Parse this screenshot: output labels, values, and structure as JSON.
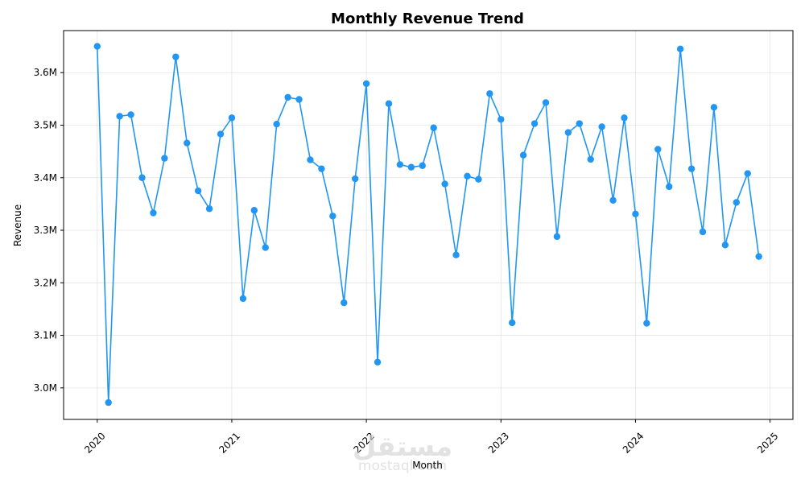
{
  "chart_data": {
    "type": "line",
    "title": "Monthly Revenue Trend",
    "xlabel": "Month",
    "ylabel": "Revenue",
    "xlim": [
      2019.75,
      2025.17
    ],
    "ylim": [
      2.94,
      3.68
    ],
    "x_ticks": [
      {
        "value": 2020,
        "label": "2020"
      },
      {
        "value": 2021,
        "label": "2021"
      },
      {
        "value": 2022,
        "label": "2022"
      },
      {
        "value": 2023,
        "label": "2023"
      },
      {
        "value": 2024,
        "label": "2024"
      },
      {
        "value": 2025,
        "label": "2025"
      }
    ],
    "y_ticks": [
      {
        "value": 3.0,
        "label": "3.0M"
      },
      {
        "value": 3.1,
        "label": "3.1M"
      },
      {
        "value": 3.2,
        "label": "3.2M"
      },
      {
        "value": 3.3,
        "label": "3.3M"
      },
      {
        "value": 3.4,
        "label": "3.4M"
      },
      {
        "value": 3.5,
        "label": "3.5M"
      },
      {
        "value": 3.6,
        "label": "3.6M"
      }
    ],
    "grid": true,
    "series": [
      {
        "name": "Revenue",
        "color": "#2196f3",
        "start_year": 2020,
        "values": [
          3.65,
          2.972,
          3.517,
          3.52,
          3.4,
          3.333,
          3.437,
          3.63,
          3.466,
          3.375,
          3.341,
          3.483,
          3.514,
          3.17,
          3.338,
          3.267,
          3.502,
          3.553,
          3.549,
          3.434,
          3.417,
          3.327,
          3.162,
          3.398,
          3.579,
          3.049,
          3.541,
          3.425,
          3.42,
          3.423,
          3.495,
          3.388,
          3.253,
          3.403,
          3.397,
          3.56,
          3.511,
          3.124,
          3.443,
          3.503,
          3.543,
          3.288,
          3.486,
          3.503,
          3.435,
          3.497,
          3.357,
          3.514,
          3.331,
          3.123,
          3.454,
          3.383,
          3.645,
          3.417,
          3.297,
          3.534,
          3.272,
          3.353,
          3.408,
          3.25
        ]
      }
    ]
  },
  "watermark": {
    "arabic": "مستقل",
    "latin": "mostaql.com"
  }
}
